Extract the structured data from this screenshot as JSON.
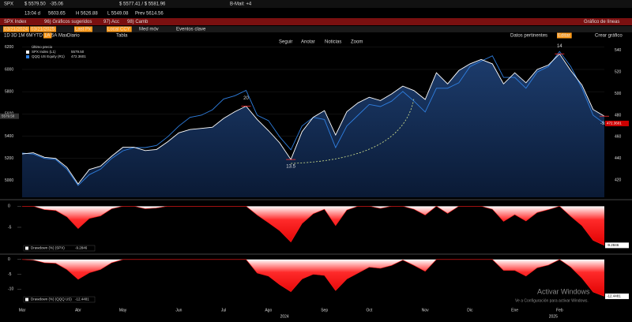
{
  "terminal": {
    "row1": [
      "SPX",
      "$ 5579.50",
      "-35.06",
      "$ 5577.41 / $ 5581.96",
      "B-Mail: +4"
    ],
    "row2": [
      "13:04 d",
      "5603.65",
      "H 5626.88",
      "L 5549.08",
      "Prev 5614.56"
    ],
    "row3": [
      "SPX Index",
      "96) Gráficos sugeridos",
      "97) Acc",
      "98) Camb",
      "Gráfico de líneas"
    ],
    "row4": [
      "03/21/2024",
      "03/21/2025",
      "Last Px",
      "Local CCY",
      "Med móv",
      "Eventos clave"
    ],
    "row5": [
      "1D",
      "3D",
      "1M",
      "6M",
      "YTD",
      "1A",
      "5A",
      "Max",
      "Diario",
      "Tabla",
      "Datos pertinentes",
      "Editar",
      "Crear gráfico"
    ],
    "row6": [
      "Seguir",
      "Anotar",
      "Noticias",
      "Zoom"
    ],
    "watermark": [
      "Activar Windows",
      "Ve a Configuración para activar Windows."
    ]
  },
  "chart_data": [
    {
      "type": "line",
      "legend_title": "Último precio",
      "categories": [
        "Mar",
        null,
        null,
        null,
        null,
        "Abr",
        null,
        null,
        null,
        "May",
        null,
        null,
        null,
        null,
        "Jun",
        null,
        null,
        null,
        "Jul",
        null,
        null,
        null,
        "Ago",
        null,
        null,
        null,
        null,
        "Sep",
        null,
        null,
        null,
        "Oct",
        null,
        null,
        null,
        null,
        "Nov",
        null,
        null,
        null,
        "Dic",
        null,
        null,
        null,
        "Ene",
        null,
        null,
        null,
        "Feb",
        null,
        null,
        null,
        null
      ],
      "year_labels": [
        "2024",
        "2025"
      ],
      "ylim": [
        4850,
        6220
      ],
      "yticks": [
        5000,
        5200,
        5400,
        5600,
        5800,
        6000,
        6200
      ],
      "y2lim": [
        404,
        545
      ],
      "y2ticks": [
        420,
        440,
        460,
        480,
        500,
        520,
        540
      ],
      "annotations": [
        "20",
        "13.5",
        "14",
        "-9.8"
      ],
      "series": [
        {
          "name": "SPX Index (L1)",
          "color": "#ffffff",
          "last_label": "5579.50",
          "values": [
            5240,
            5250,
            5210,
            5200,
            5120,
            4970,
            5100,
            5130,
            5220,
            5300,
            5300,
            5270,
            5280,
            5350,
            5430,
            5460,
            5470,
            5480,
            5560,
            5620,
            5670,
            5550,
            5450,
            5340,
            5190,
            5440,
            5570,
            5630,
            5410,
            5620,
            5700,
            5750,
            5720,
            5780,
            5850,
            5810,
            5730,
            5970,
            5870,
            5990,
            6050,
            6090,
            6050,
            5870,
            5970,
            5880,
            6000,
            6040,
            6140,
            5990,
            5860,
            5640,
            5579.5
          ]
        },
        {
          "name": "QQQ US Equity (R1)",
          "color": "#2f7fe0",
          "axis": "y2",
          "values": [
            445,
            444,
            440,
            439,
            430,
            415,
            425,
            430,
            440,
            447,
            450,
            450,
            452,
            460,
            470,
            478,
            480,
            485,
            495,
            498,
            503,
            480,
            475,
            460,
            448,
            470,
            478,
            476,
            450,
            470,
            480,
            490,
            488,
            493,
            502,
            493,
            483,
            505,
            505,
            510,
            525,
            530,
            535,
            515,
            515,
            505,
            520,
            525,
            539,
            525,
            505,
            480,
            472.3601
          ]
        }
      ]
    },
    {
      "type": "area",
      "ylim": [
        -11,
        1
      ],
      "yticks": [
        0,
        -5
      ],
      "series": [
        {
          "name": "Drawdown (%) (SPX)",
          "color": "#ff1a1a",
          "values": [
            0,
            0,
            -0.8,
            -1,
            -2.5,
            -5.3,
            -2.9,
            -2.3,
            -0.6,
            0,
            0,
            -0.6,
            -0.4,
            0,
            0,
            0,
            0,
            0,
            0,
            0,
            0,
            -2.1,
            -3.9,
            -5.8,
            -8.5,
            -4.1,
            -1.8,
            -0.7,
            -4.6,
            -0.9,
            0,
            0,
            -0.5,
            0,
            0,
            -0.7,
            -2.1,
            0,
            -1.7,
            0,
            0,
            0,
            -0.7,
            -3.6,
            -2,
            -3.5,
            -1.5,
            -0.8,
            0,
            -2.4,
            -4.6,
            -8.1,
            -9.2846
          ]
        }
      ]
    },
    {
      "type": "area",
      "ylim": [
        -15,
        1
      ],
      "yticks": [
        0,
        -5,
        -10
      ],
      "series": [
        {
          "name": "Drawdown (%) (QQQ US)",
          "color": "#ff1a1a",
          "values": [
            0,
            -0.2,
            -1.1,
            -1.3,
            -3.4,
            -6.7,
            -4.5,
            -3.4,
            -1.1,
            0,
            0,
            0,
            0,
            0,
            0,
            0,
            0,
            0,
            0,
            0,
            0,
            -4.6,
            -5.6,
            -8.5,
            -10.9,
            -6.6,
            -5,
            -5.4,
            -10.5,
            -6.6,
            -4.6,
            -2.6,
            -3,
            -2,
            -0.2,
            -2,
            -4,
            0,
            0,
            0,
            0,
            0,
            0,
            -3.7,
            -3.7,
            -5.6,
            -2.8,
            -1.9,
            0,
            -2.6,
            -6.3,
            -11,
            -12.4481
          ]
        }
      ]
    }
  ]
}
